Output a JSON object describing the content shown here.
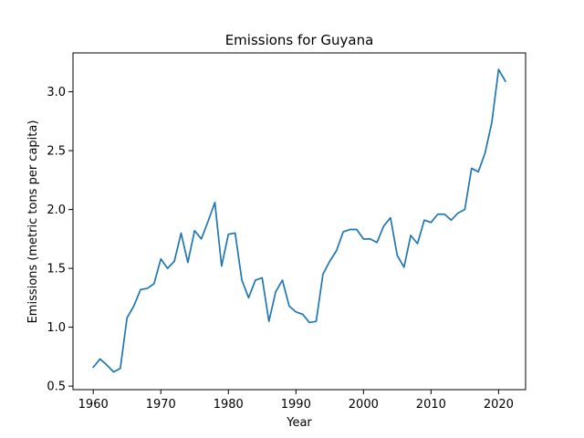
{
  "chart_data": {
    "type": "line",
    "title": "Emissions for Guyana",
    "xlabel": "Year",
    "ylabel": "Emissions (metric tons per capita)",
    "xlim": [
      1957,
      2024
    ],
    "ylim": [
      0.47,
      3.33
    ],
    "xticks": [
      1960,
      1970,
      1980,
      1990,
      2000,
      2010,
      2020
    ],
    "yticks": [
      0.5,
      1.0,
      1.5,
      2.0,
      2.5,
      3.0
    ],
    "ytick_labels": [
      "0.5",
      "1.0",
      "1.5",
      "2.0",
      "2.5",
      "3.0"
    ],
    "grid": false,
    "series": [
      {
        "color": "#1f77b4",
        "x": [
          1960,
          1961,
          1962,
          1963,
          1964,
          1965,
          1966,
          1967,
          1968,
          1969,
          1970,
          1971,
          1972,
          1973,
          1974,
          1975,
          1976,
          1977,
          1978,
          1979,
          1980,
          1981,
          1982,
          1983,
          1984,
          1985,
          1986,
          1987,
          1988,
          1989,
          1990,
          1991,
          1992,
          1993,
          1994,
          1995,
          1996,
          1997,
          1998,
          1999,
          2000,
          2001,
          2002,
          2003,
          2004,
          2005,
          2006,
          2007,
          2008,
          2009,
          2010,
          2011,
          2012,
          2013,
          2014,
          2015,
          2016,
          2017,
          2018,
          2019,
          2020,
          2021
        ],
        "y": [
          0.66,
          0.73,
          0.68,
          0.62,
          0.65,
          1.08,
          1.18,
          1.32,
          1.33,
          1.37,
          1.58,
          1.5,
          1.56,
          1.8,
          1.55,
          1.82,
          1.75,
          1.9,
          2.06,
          1.52,
          1.79,
          1.8,
          1.4,
          1.25,
          1.4,
          1.42,
          1.05,
          1.3,
          1.4,
          1.18,
          1.13,
          1.11,
          1.04,
          1.05,
          1.45,
          1.56,
          1.65,
          1.81,
          1.83,
          1.83,
          1.75,
          1.75,
          1.72,
          1.86,
          1.93,
          1.61,
          1.51,
          1.78,
          1.71,
          1.91,
          1.89,
          1.96,
          1.96,
          1.91,
          1.97,
          2.0,
          2.35,
          2.32,
          2.48,
          2.74,
          3.19,
          3.09
        ]
      }
    ]
  }
}
